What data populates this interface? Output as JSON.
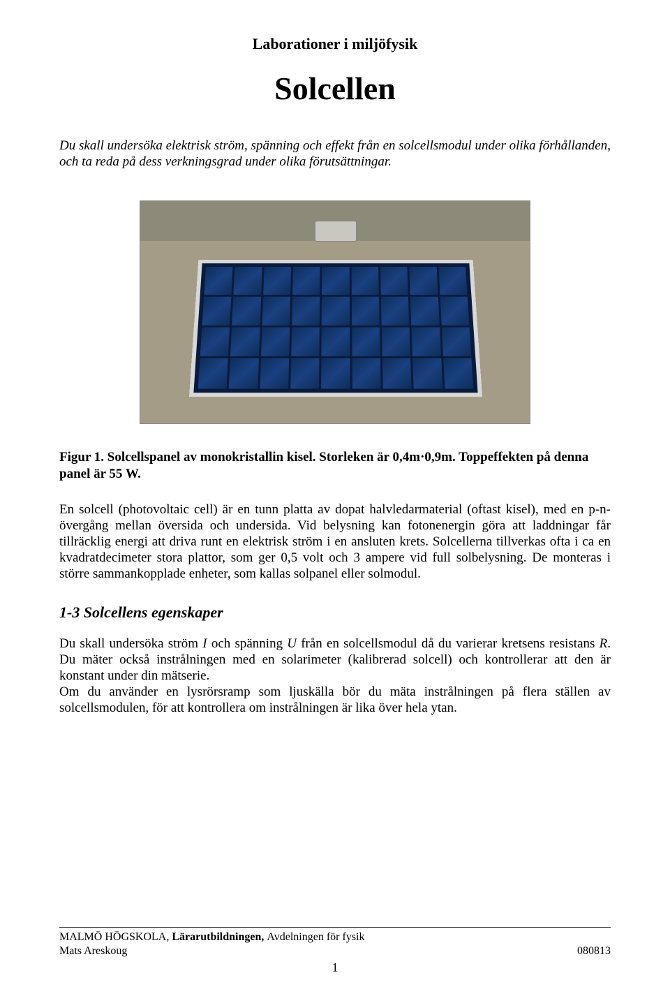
{
  "pretitle": "Laborationer i miljöfysik",
  "title": "Solcellen",
  "intro": "Du skall undersöka elektrisk ström, spänning och effekt från en solcellsmodul under olika förhållanden, och ta reda på dess verkningsgrad under olika förutsättningar.",
  "caption": "Figur 1. Solcellspanel av monokristallin kisel. Storleken är 0,4m·0,9m. Toppeffekten på denna panel är 55 W.",
  "body1": "En solcell (photovoltaic cell) är en tunn platta av dopat halvledarmaterial (oftast kisel), med en p-n-övergång mellan översida och undersida. Vid belysning kan fotonenergin göra att laddningar får tillräcklig energi att driva runt en elektrisk ström i en ansluten krets. Solcellerna tillverkas ofta i ca en kvadratdecimeter stora plattor, som ger 0,5 volt och 3 ampere vid full solbelysning. De monteras i större sammankopplade enheter, som kallas solpanel eller solmodul.",
  "section": "1-3 Solcellens egenskaper",
  "body2_a": "Du skall undersöka ström ",
  "body2_b": " och spänning ",
  "body2_c": " från en solcellsmodul då du varierar kretsens resistans ",
  "body2_d": ". Du mäter också instrålningen med en solarimeter (kalibrerad solcell) och kontrollerar att den är konstant under din mätserie.",
  "body2_e": "Om du använder en lysrörsramp som ljuskälla bör du mäta instrålningen på flera ställen av solcellsmodulen, för att kontrollera om instrålningen är lika över hela ytan.",
  "var_I": "I",
  "var_U": "U",
  "var_R": "R",
  "footer": {
    "inst1": "MALMÖ HÖGSKOLA, ",
    "inst2": "Lärarutbildningen, ",
    "inst3": "Avdelningen för fysik",
    "author": "Mats Areskoug",
    "date": "080813",
    "page": "1"
  }
}
